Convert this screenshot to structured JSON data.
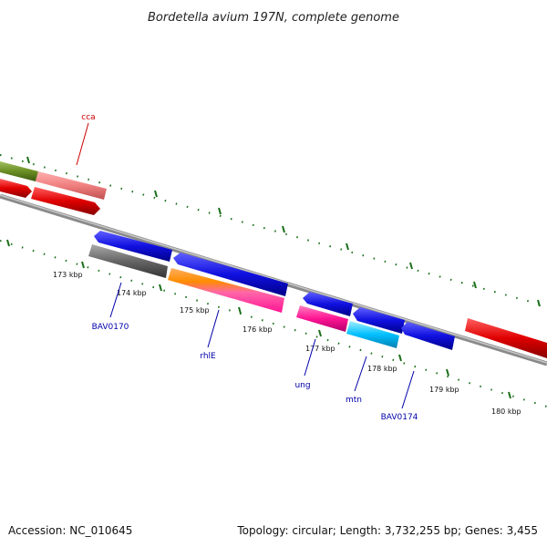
{
  "title": "Bordetella avium 197N, complete genome",
  "footer": {
    "accession": "Accession: NC_010645",
    "summary": "Topology: circular; Length: 3,732,255 bp; Genes: 3,455"
  },
  "ticks": [
    "173 kbp",
    "174 kbp",
    "175 kbp",
    "176 kbp",
    "177 kbp",
    "178 kbp",
    "179 kbp",
    "180 kbp"
  ],
  "genes": [
    {
      "id": "cca",
      "label": "cca",
      "color": "#cc0000"
    },
    {
      "id": "BAV0170",
      "label": "BAV0170",
      "color": "#0000aa"
    },
    {
      "id": "rhlE",
      "label": "rhlE",
      "color": "#0000aa"
    },
    {
      "id": "ung",
      "label": "ung",
      "color": "#0000aa"
    },
    {
      "id": "mtn",
      "label": "mtn",
      "color": "#0000aa"
    },
    {
      "id": "BAV0174",
      "label": "BAV0174",
      "color": "#0000aa"
    }
  ],
  "colors": {
    "backbone": "#8a8a8a",
    "tick": "#1a6e1a",
    "blue": "#1010e0",
    "red": "#e00000",
    "pink": "#f08080",
    "olive": "#6b8e23",
    "gray": "#666666",
    "magenta": "#ff1493",
    "cyan": "#00bfff",
    "orange": "#ff8c00"
  }
}
